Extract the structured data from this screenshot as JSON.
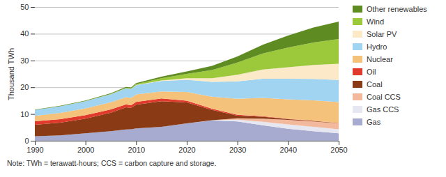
{
  "chart_data": {
    "type": "area",
    "stacked": true,
    "ylabel": "Thousand TWh",
    "note": "Note:  TWh = terawatt-hours; CCS = carbon capture and storage.",
    "x": [
      1990,
      1995,
      2000,
      2005,
      2008,
      2009,
      2010,
      2015,
      2020,
      2025,
      2030,
      2035,
      2040,
      2045,
      2050
    ],
    "xlim": [
      1990,
      2050
    ],
    "xticks": [
      1990,
      2000,
      2010,
      2020,
      2030,
      2040,
      2050
    ],
    "ylim": [
      0,
      50
    ],
    "yticks": [
      0,
      10,
      20,
      30,
      40,
      50
    ],
    "grid": true,
    "legend": "right",
    "series": [
      {
        "name": "Other renewables",
        "color": "#5e8c22",
        "values": [
          0.15,
          0.17,
          0.2,
          0.25,
          0.3,
          0.32,
          0.4,
          0.6,
          0.9,
          1.6,
          2.3,
          3.3,
          4.5,
          5.6,
          6.5
        ]
      },
      {
        "name": "Wind",
        "color": "#9cc83c",
        "values": [
          0,
          0.01,
          0.03,
          0.1,
          0.2,
          0.27,
          0.35,
          0.8,
          1.6,
          3.0,
          4.5,
          6.0,
          7.3,
          8.4,
          9.3
        ]
      },
      {
        "name": "Solar PV",
        "color": "#fbe9c8",
        "values": [
          0,
          0,
          0,
          0.01,
          0.01,
          0.02,
          0.03,
          0.25,
          0.6,
          1.4,
          2.5,
          3.4,
          4.3,
          5.2,
          6.0
        ]
      },
      {
        "name": "Hydro",
        "color": "#a0d4f0",
        "values": [
          2.2,
          2.5,
          2.7,
          3.0,
          3.3,
          3.3,
          3.5,
          3.9,
          4.6,
          5.5,
          6.5,
          7.2,
          7.7,
          8.0,
          8.3
        ]
      },
      {
        "name": "Nuclear",
        "color": "#f5c27c",
        "values": [
          2.0,
          2.3,
          2.5,
          2.7,
          2.7,
          2.7,
          2.8,
          2.6,
          3.2,
          4.5,
          6.0,
          6.8,
          7.3,
          7.6,
          7.8
        ]
      },
      {
        "name": "Oil",
        "color": "#e03a2c",
        "values": [
          1.3,
          1.3,
          1.3,
          1.2,
          1.1,
          1.0,
          1.0,
          1.0,
          0.7,
          0.5,
          0.3,
          0.2,
          0.1,
          0.1,
          0.05
        ]
      },
      {
        "name": "Coal",
        "color": "#8a3a14",
        "values": [
          4.3,
          4.8,
          5.5,
          6.9,
          8.3,
          8.0,
          8.9,
          9.6,
          7.8,
          3.8,
          1.0,
          0.7,
          0.3,
          0.2,
          0.1
        ]
      },
      {
        "name": "Coal CCS",
        "color": "#f3b99c",
        "values": [
          0,
          0,
          0,
          0,
          0,
          0,
          0,
          0,
          0,
          0,
          0.5,
          1.2,
          1.7,
          2.0,
          2.2
        ]
      },
      {
        "name": "Gas CCS",
        "color": "#e6e7f0",
        "values": [
          0,
          0,
          0,
          0,
          0,
          0,
          0,
          0,
          0,
          0.1,
          0.7,
          1.3,
          1.6,
          1.6,
          1.5
        ]
      },
      {
        "name": "Gas",
        "color": "#a6abcf",
        "values": [
          1.7,
          2.0,
          2.8,
          3.6,
          4.2,
          4.3,
          4.6,
          5.2,
          6.5,
          7.6,
          7.2,
          5.8,
          4.5,
          3.6,
          2.8
        ]
      }
    ]
  }
}
